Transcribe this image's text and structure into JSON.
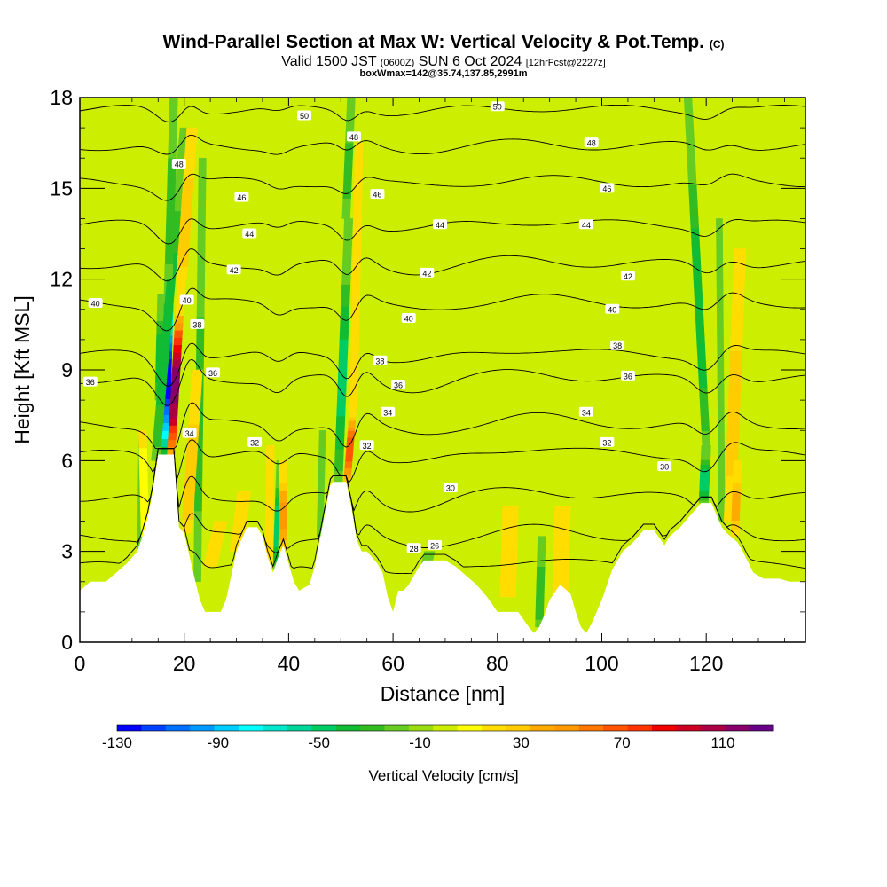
{
  "title": {
    "main": "Wind-Parallel Section at Max W: Vertical Velocity & Pot.Temp.",
    "copyright": "(C)",
    "valid_prefix": "Valid 1500 JST",
    "valid_utc": "(0600Z)",
    "valid_date": "SUN 6 Oct 2024",
    "forecast": "[12hrFcst@2227z]",
    "box_info": "boxWmax=142@35.74,137.85,2991m"
  },
  "chart_data": {
    "type": "heatmap",
    "xlabel": "Distance [nm]",
    "ylabel": "Height [Kft MSL]",
    "xlim": [
      0,
      139
    ],
    "ylim": [
      0,
      18
    ],
    "x_ticks": [
      0,
      20,
      40,
      60,
      80,
      100,
      120
    ],
    "y_ticks": [
      0,
      3,
      6,
      9,
      12,
      15,
      18
    ],
    "background_w_cms": 0,
    "terrain_kft": [
      [
        0,
        1.7
      ],
      [
        2,
        2.0
      ],
      [
        5,
        2.0
      ],
      [
        7,
        2.3
      ],
      [
        9,
        2.6
      ],
      [
        11,
        3.0
      ],
      [
        12,
        3.5
      ],
      [
        13,
        4.1
      ],
      [
        14,
        5.0
      ],
      [
        15,
        6.2
      ],
      [
        18,
        6.2
      ],
      [
        19,
        3.8
      ],
      [
        20,
        3.6
      ],
      [
        22,
        2.1
      ],
      [
        23,
        1.4
      ],
      [
        24,
        1.0
      ],
      [
        27,
        1.0
      ],
      [
        28,
        1.4
      ],
      [
        29,
        2.2
      ],
      [
        30,
        3.0
      ],
      [
        31,
        3.4
      ],
      [
        32,
        3.8
      ],
      [
        34,
        3.8
      ],
      [
        35,
        3.5
      ],
      [
        36,
        2.8
      ],
      [
        37,
        2.3
      ],
      [
        38,
        2.8
      ],
      [
        39,
        3.2
      ],
      [
        40,
        2.6
      ],
      [
        41,
        2.0
      ],
      [
        42,
        1.7
      ],
      [
        44,
        1.9
      ],
      [
        45,
        2.5
      ],
      [
        46,
        3.4
      ],
      [
        47,
        4.3
      ],
      [
        48,
        5.2
      ],
      [
        48.5,
        5.3
      ],
      [
        51,
        5.3
      ],
      [
        52,
        4.5
      ],
      [
        53,
        3.4
      ],
      [
        54,
        3.0
      ],
      [
        55,
        3.0
      ],
      [
        56,
        2.8
      ],
      [
        57,
        2.6
      ],
      [
        58,
        2.3
      ],
      [
        59,
        1.5
      ],
      [
        60,
        1.0
      ],
      [
        61,
        1.7
      ],
      [
        62,
        1.7
      ],
      [
        63,
        1.9
      ],
      [
        64,
        2.2
      ],
      [
        65,
        2.5
      ],
      [
        66,
        2.7
      ],
      [
        70,
        2.7
      ],
      [
        72,
        2.5
      ],
      [
        74,
        2.2
      ],
      [
        76,
        1.9
      ],
      [
        78,
        1.5
      ],
      [
        80,
        1.0
      ],
      [
        84,
        1.0
      ],
      [
        86,
        0.5
      ],
      [
        87,
        0.3
      ],
      [
        88,
        0.5
      ],
      [
        89,
        0.9
      ],
      [
        90,
        1.4
      ],
      [
        92,
        1.9
      ],
      [
        94,
        1.6
      ],
      [
        95,
        1.0
      ],
      [
        96,
        0.5
      ],
      [
        97,
        0.3
      ],
      [
        98,
        0.6
      ],
      [
        99,
        1.0
      ],
      [
        100,
        1.4
      ],
      [
        102,
        2.4
      ],
      [
        104,
        3.0
      ],
      [
        106,
        3.3
      ],
      [
        108,
        3.7
      ],
      [
        110,
        3.7
      ],
      [
        112,
        3.2
      ],
      [
        113,
        3.5
      ],
      [
        115,
        3.8
      ],
      [
        117,
        4.2
      ],
      [
        119,
        4.6
      ],
      [
        121,
        4.6
      ],
      [
        122,
        4.2
      ],
      [
        123,
        3.8
      ],
      [
        124,
        3.6
      ],
      [
        126,
        3.3
      ],
      [
        127,
        3.0
      ],
      [
        129,
        2.3
      ],
      [
        131,
        2.1
      ],
      [
        134,
        2.1
      ],
      [
        136,
        2.0
      ],
      [
        139,
        2.0
      ]
    ],
    "updrafts": [
      {
        "x0": 17.5,
        "z0": 6.2,
        "x1": 19.5,
        "z1": 12.0,
        "max_w": 130,
        "width_nm": 1.5
      },
      {
        "x0": 19.5,
        "z0": 12.0,
        "x1": 21.5,
        "z1": 17.0,
        "max_w": 40,
        "width_nm": 2.0
      },
      {
        "x0": 20.5,
        "z0": 3.6,
        "x1": 22.5,
        "z1": 9.0,
        "max_w": 40,
        "width_nm": 2.0
      },
      {
        "x0": 51.2,
        "z0": 5.3,
        "x1": 52.5,
        "z1": 8.0,
        "max_w": 80,
        "width_nm": 1.3
      },
      {
        "x0": 52.5,
        "z0": 8.0,
        "x1": 53.5,
        "z1": 16.5,
        "max_w": 30,
        "width_nm": 1.5
      },
      {
        "x0": 38.8,
        "z0": 3.0,
        "x1": 39.0,
        "z1": 6.0,
        "max_w": 55,
        "width_nm": 1.5
      },
      {
        "x0": 36.2,
        "z0": 2.6,
        "x1": 36.5,
        "z1": 6.5,
        "max_w": 30,
        "width_nm": 1.5
      },
      {
        "x0": 30.0,
        "z0": 3.0,
        "x1": 31.5,
        "z1": 5.0,
        "max_w": 30,
        "width_nm": 2.5
      },
      {
        "x0": 25.0,
        "z0": 2.5,
        "x1": 27.0,
        "z1": 4.0,
        "max_w": 25,
        "width_nm": 2.5
      },
      {
        "x0": 124.5,
        "z0": 4.0,
        "x1": 126.5,
        "z1": 13.0,
        "max_w": 35,
        "width_nm": 2.2
      },
      {
        "x0": 125.5,
        "z0": 3.5,
        "x1": 126.0,
        "z1": 6.0,
        "max_w": 45,
        "width_nm": 1.5
      },
      {
        "x0": 82.0,
        "z0": 1.5,
        "x1": 82.5,
        "z1": 4.5,
        "max_w": 20,
        "width_nm": 3.0
      },
      {
        "x0": 92.0,
        "z0": 1.5,
        "x1": 92.5,
        "z1": 4.5,
        "max_w": 20,
        "width_nm": 3.0
      },
      {
        "x0": 12.5,
        "z0": 3.5,
        "x1": 12.0,
        "z1": 7.0,
        "max_w": 15,
        "width_nm": 1.5
      }
    ],
    "downdrafts": [
      {
        "x0": 16.2,
        "z0": 6.2,
        "x1": 17.2,
        "z1": 12.5,
        "min_w": -130,
        "width_nm": 1.8
      },
      {
        "x0": 15.0,
        "z0": 8.0,
        "x1": 15.5,
        "z1": 11.5,
        "min_w": -40,
        "width_nm": 1.2
      },
      {
        "x0": 14.5,
        "z0": 6.0,
        "x1": 20.0,
        "z1": 17.0,
        "min_w": -40,
        "width_nm": 1.6
      },
      {
        "x0": 17.0,
        "z0": 12.0,
        "x1": 18.0,
        "z1": 18.0,
        "min_w": -30,
        "width_nm": 1.5
      },
      {
        "x0": 49.5,
        "z0": 5.3,
        "x1": 51.5,
        "z1": 14.0,
        "min_w": -45,
        "width_nm": 1.6
      },
      {
        "x0": 51.0,
        "z0": 14.0,
        "x1": 52.0,
        "z1": 18.0,
        "min_w": -25,
        "width_nm": 1.5
      },
      {
        "x0": 37.5,
        "z0": 2.4,
        "x1": 38.2,
        "z1": 6.0,
        "min_w": -50,
        "width_nm": 1.0
      },
      {
        "x0": 119.5,
        "z0": 4.6,
        "x1": 120.0,
        "z1": 6.5,
        "min_w": -50,
        "width_nm": 1.8
      },
      {
        "x0": 120.0,
        "z0": 6.5,
        "x1": 116.5,
        "z1": 18.0,
        "min_w": -40,
        "width_nm": 1.5
      },
      {
        "x0": 65.0,
        "z0": 1.5,
        "x1": 67.0,
        "z1": 3.0,
        "min_w": -30,
        "width_nm": 2.0
      },
      {
        "x0": 88.0,
        "z0": 0.5,
        "x1": 88.5,
        "z1": 3.5,
        "min_w": -30,
        "width_nm": 1.5
      },
      {
        "x0": 22.5,
        "z0": 2.0,
        "x1": 23.5,
        "z1": 16.0,
        "min_w": -25,
        "width_nm": 1.4
      },
      {
        "x0": 11.5,
        "z0": 3.0,
        "x1": 11.8,
        "z1": 7.0,
        "min_w": -20,
        "width_nm": 1.0
      },
      {
        "x0": 46.0,
        "z0": 3.5,
        "x1": 46.5,
        "z1": 7.0,
        "min_w": -20,
        "width_nm": 1.2
      },
      {
        "x0": 123.0,
        "z0": 4.0,
        "x1": 122.5,
        "z1": 14.0,
        "min_w": -20,
        "width_nm": 1.2
      }
    ],
    "theta_contours": [
      {
        "value": 26,
        "z": 2.5
      },
      {
        "value": 28,
        "z": 3.5
      },
      {
        "value": 30,
        "z": 4.8
      },
      {
        "value": 32,
        "z": 6.2
      },
      {
        "value": 34,
        "z": 7.2
      },
      {
        "value": 36,
        "z": 8.7
      },
      {
        "value": 38,
        "z": 9.5
      },
      {
        "value": 40,
        "z": 11.2
      },
      {
        "value": 42,
        "z": 12.5
      },
      {
        "value": 44,
        "z": 13.8
      },
      {
        "value": 46,
        "z": 15.2
      },
      {
        "value": 48,
        "z": 16.4
      },
      {
        "value": 50,
        "z": 17.6
      }
    ],
    "theta_labels": [
      {
        "value": "26",
        "x": 68,
        "z": 3.2
      },
      {
        "value": "28",
        "x": 64,
        "z": 3.1
      },
      {
        "value": "30",
        "x": 71,
        "z": 5.1
      },
      {
        "value": "30",
        "x": 112,
        "z": 5.8
      },
      {
        "value": "32",
        "x": 33.5,
        "z": 6.6
      },
      {
        "value": "32",
        "x": 55,
        "z": 6.5
      },
      {
        "value": "32",
        "x": 101,
        "z": 6.6
      },
      {
        "value": "34",
        "x": 21,
        "z": 6.9
      },
      {
        "value": "34",
        "x": 59,
        "z": 7.6
      },
      {
        "value": "34",
        "x": 97,
        "z": 7.6
      },
      {
        "value": "36",
        "x": 2,
        "z": 8.6
      },
      {
        "value": "36",
        "x": 25.5,
        "z": 8.9
      },
      {
        "value": "36",
        "x": 61,
        "z": 8.5
      },
      {
        "value": "36",
        "x": 105,
        "z": 8.8
      },
      {
        "value": "38",
        "x": 22.5,
        "z": 10.5
      },
      {
        "value": "38",
        "x": 57.5,
        "z": 9.3
      },
      {
        "value": "38",
        "x": 103,
        "z": 9.8
      },
      {
        "value": "40",
        "x": 3,
        "z": 11.2
      },
      {
        "value": "40",
        "x": 20.5,
        "z": 11.3
      },
      {
        "value": "40",
        "x": 63,
        "z": 10.7
      },
      {
        "value": "40",
        "x": 102,
        "z": 11.0
      },
      {
        "value": "42",
        "x": 29.5,
        "z": 12.3
      },
      {
        "value": "42",
        "x": 66.5,
        "z": 12.2
      },
      {
        "value": "42",
        "x": 105,
        "z": 12.1
      },
      {
        "value": "44",
        "x": 32.5,
        "z": 13.5
      },
      {
        "value": "44",
        "x": 69,
        "z": 13.8
      },
      {
        "value": "44",
        "x": 97,
        "z": 13.8
      },
      {
        "value": "46",
        "x": 31,
        "z": 14.7
      },
      {
        "value": "46",
        "x": 57,
        "z": 14.8
      },
      {
        "value": "46",
        "x": 101,
        "z": 15.0
      },
      {
        "value": "48",
        "x": 19,
        "z": 15.8
      },
      {
        "value": "48",
        "x": 52.5,
        "z": 16.7
      },
      {
        "value": "48",
        "x": 98,
        "z": 16.5
      },
      {
        "value": "50",
        "x": 43,
        "z": 17.4
      },
      {
        "value": "50",
        "x": 80,
        "z": 17.7
      }
    ],
    "colorbar": {
      "label": "Vertical Velocity [cm/s]",
      "tick_labels": [
        "-130",
        "-90",
        "-50",
        "-10",
        "30",
        "70",
        "110"
      ],
      "levels": [
        -130,
        -120,
        -110,
        -100,
        -90,
        -80,
        -70,
        -60,
        -50,
        -40,
        -30,
        -20,
        -10,
        0,
        10,
        20,
        30,
        40,
        50,
        60,
        70,
        80,
        90,
        100,
        110,
        120,
        130
      ],
      "colors": [
        "#0000ff",
        "#0040ff",
        "#0070ff",
        "#0099ff",
        "#00ccff",
        "#00ffff",
        "#00e6cc",
        "#00d699",
        "#00cc66",
        "#11bb33",
        "#33bb22",
        "#66cc22",
        "#99dd11",
        "#ccee00",
        "#ffff00",
        "#ffdd00",
        "#ffcc00",
        "#ffaa00",
        "#ff9900",
        "#ff7700",
        "#ff5500",
        "#ff3300",
        "#ee0000",
        "#cc0022",
        "#aa0044",
        "#880066",
        "#660088"
      ]
    },
    "grid": false,
    "legend": "bottom-colorbar"
  }
}
